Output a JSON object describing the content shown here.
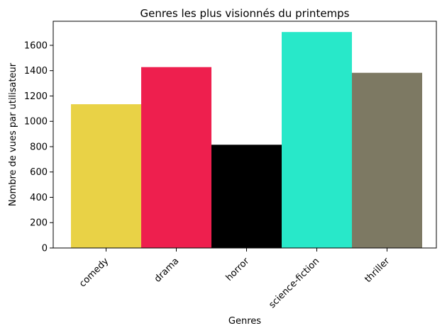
{
  "chart_data": {
    "type": "bar",
    "title": "Genres les plus visionnés du printemps",
    "xlabel": "Genres",
    "ylabel": "Nombre de vues par utilisateur",
    "categories": [
      "comedy",
      "drama",
      "horror",
      "science-fiction",
      "thriller"
    ],
    "values": [
      1135,
      1428,
      815,
      1705,
      1383
    ],
    "colors": [
      "#e9d246",
      "#ee1f4e",
      "#000000",
      "#28e8c9",
      "#7d7963"
    ],
    "ylim": [
      0,
      1790
    ],
    "yticks": [
      0,
      200,
      400,
      600,
      800,
      1000,
      1200,
      1400,
      1600
    ],
    "x_tick_rotation": -45,
    "grid": false,
    "legend": "none"
  }
}
